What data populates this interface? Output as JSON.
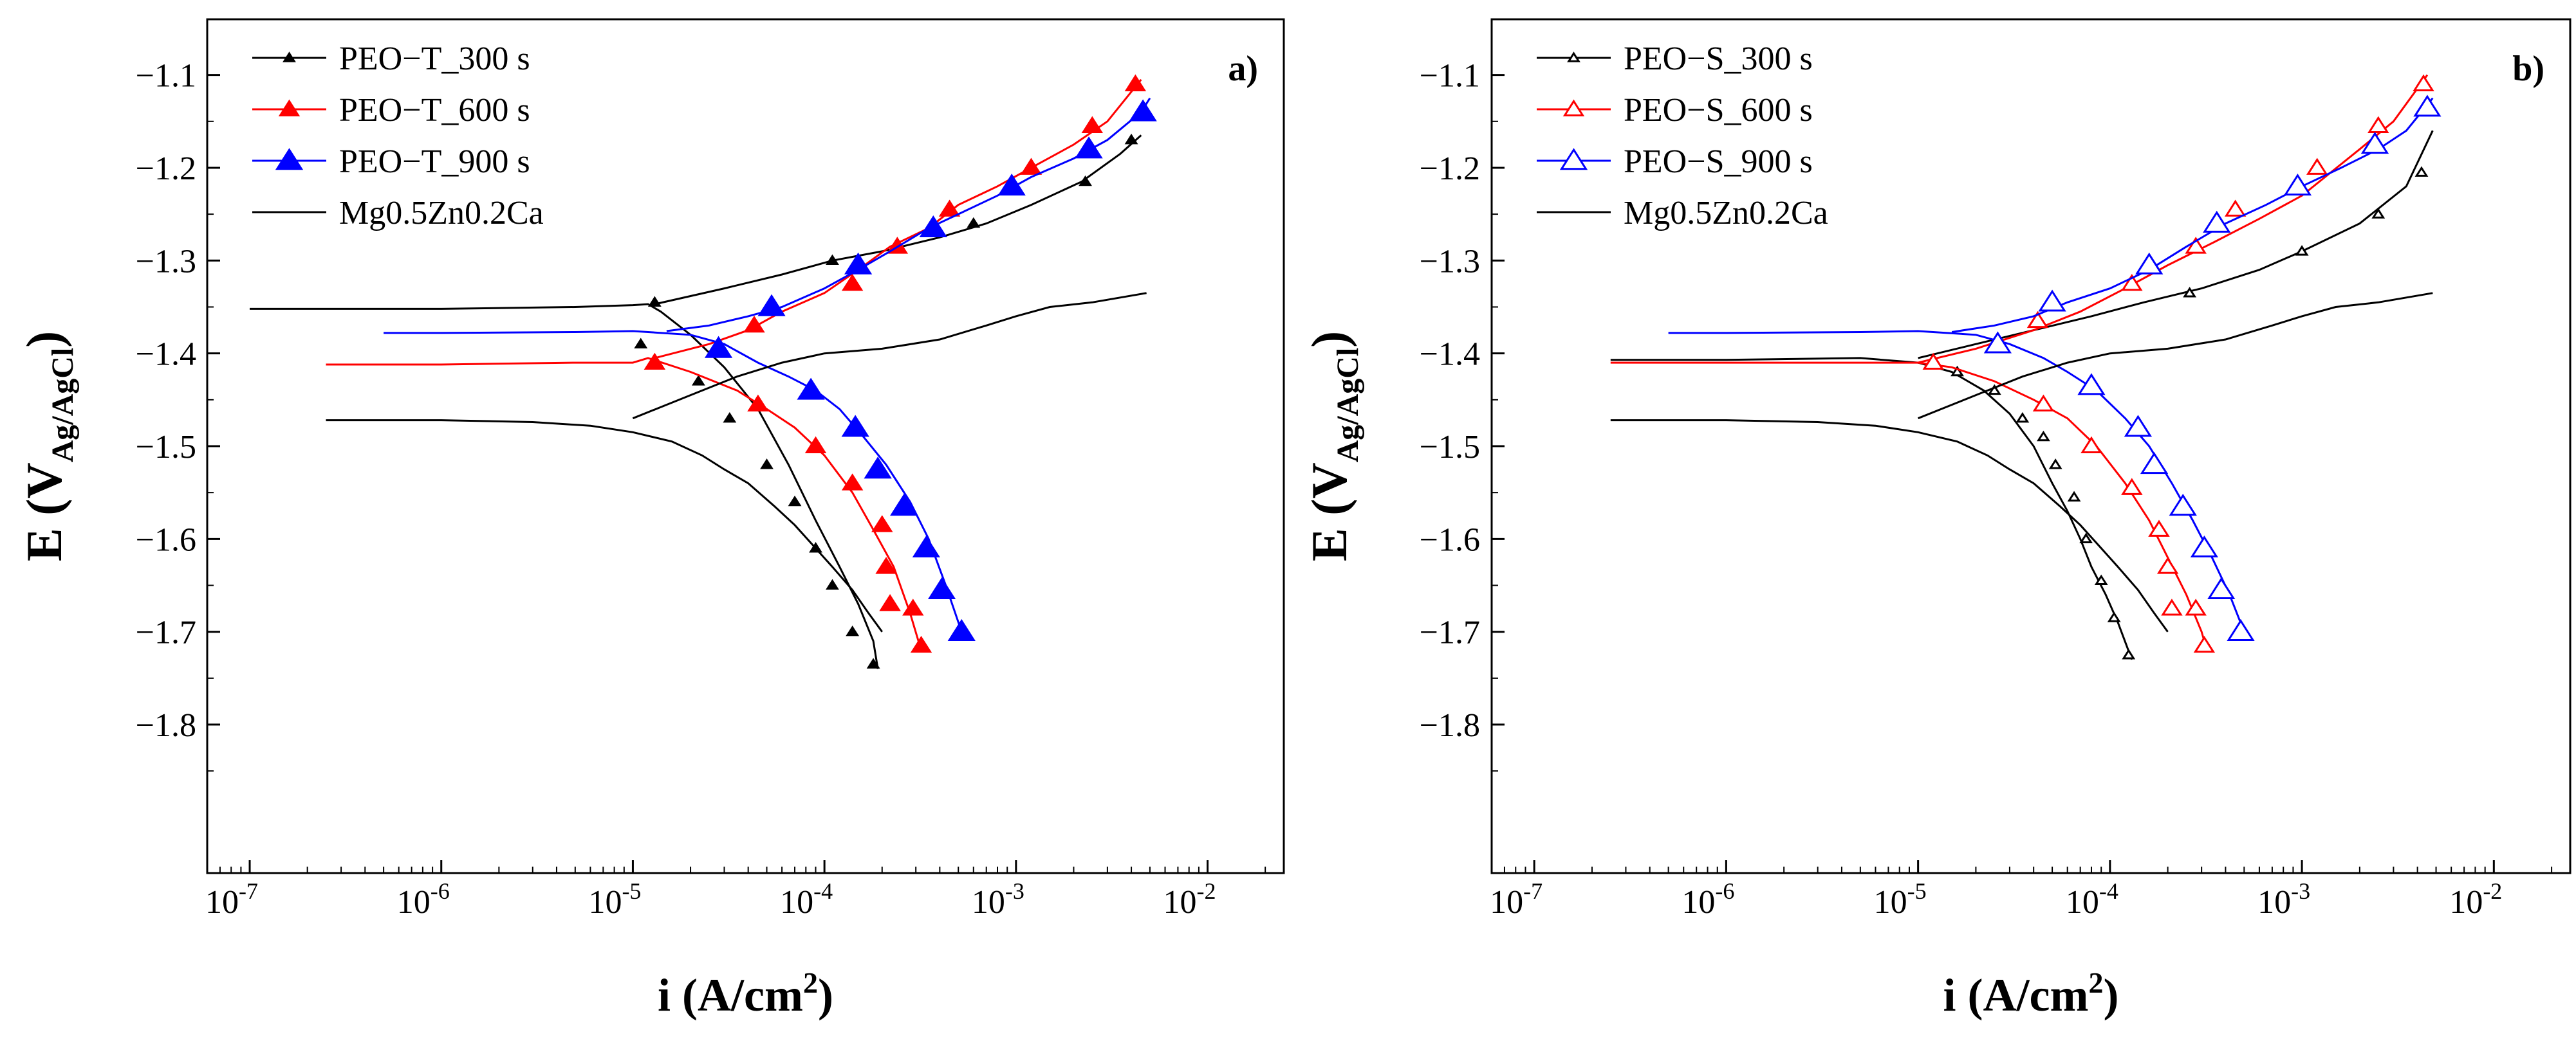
{
  "figure": {
    "description_labels": [
      "a)",
      "b)"
    ]
  },
  "chart_data": [
    {
      "type": "line",
      "panel_label": "a)",
      "xlabel": "i (A/cm²)",
      "xlabel_base": "i (A/cm",
      "xlabel_sup": "2",
      "xlabel_tail": ")",
      "ylabel": "E (V Ag/AgCl)",
      "ylabel_main": "E (V",
      "ylabel_sub": "Ag/AgCl",
      "ylabel_tail": ")",
      "xscale": "log",
      "xlim": [
        6e-08,
        0.025
      ],
      "ylim": [
        -1.96,
        -1.04
      ],
      "x_ticks": [
        1e-07,
        1e-06,
        1e-05,
        0.0001,
        0.001,
        0.01
      ],
      "x_tick_labels": [
        {
          "base": "10",
          "exp": "-7"
        },
        {
          "base": "10",
          "exp": "-6"
        },
        {
          "base": "10",
          "exp": "-5"
        },
        {
          "base": "10",
          "exp": "-4"
        },
        {
          "base": "10",
          "exp": "-3"
        },
        {
          "base": "10",
          "exp": "-2"
        }
      ],
      "y_ticks": [
        -1.1,
        -1.2,
        -1.3,
        -1.4,
        -1.5,
        -1.6,
        -1.7,
        -1.8
      ],
      "y_tick_labels": [
        "−1.1",
        "−1.2",
        "−1.3",
        "−1.4",
        "−1.5",
        "−1.6",
        "−1.7",
        "−1.8"
      ],
      "legend": "top-left",
      "series": [
        {
          "name": "PEO−T_300 s",
          "color": "#000000",
          "marker": "triangle-filled",
          "marker_scale": 0.55,
          "x": [
            1e-07,
            1e-06,
            5e-06,
            1e-05,
            1.2e-05,
            1.4e-05,
            2e-05,
            3e-05,
            4.5e-05,
            6.5e-05,
            9e-05,
            0.00012,
            0.00015,
            0.00018,
            0.00019
          ],
          "y": [
            -1.352,
            -1.352,
            -1.35,
            -1.348,
            -1.347,
            -1.355,
            -1.38,
            -1.415,
            -1.46,
            -1.52,
            -1.58,
            -1.63,
            -1.67,
            -1.71,
            -1.74
          ],
          "markers_x": [
            1.3e-05,
            1.1e-05,
            2.2e-05,
            3.2e-05,
            5e-05,
            7e-05,
            9e-05,
            0.00011,
            0.00014,
            0.00018
          ],
          "markers_y": [
            -1.345,
            -1.39,
            -1.43,
            -1.47,
            -1.52,
            -1.56,
            -1.61,
            -1.65,
            -1.7,
            -1.735
          ],
          "anodic_x": [
            1.3e-05,
            3e-05,
            6e-05,
            0.00011,
            0.0002,
            0.0004,
            0.0007,
            0.0012,
            0.0022,
            0.0035,
            0.0045
          ],
          "anodic_y": [
            -1.347,
            -1.33,
            -1.315,
            -1.3,
            -1.29,
            -1.275,
            -1.26,
            -1.24,
            -1.215,
            -1.185,
            -1.165
          ],
          "anodic_markers_x": [
            0.00011,
            0.0006,
            0.0023,
            0.004
          ],
          "anodic_markers_y": [
            -1.3,
            -1.26,
            -1.215,
            -1.17
          ]
        },
        {
          "name": "PEO−T_600 s",
          "color": "#ff0000",
          "marker": "triangle-filled",
          "marker_scale": 1.0,
          "x": [
            2.5e-07,
            1e-06,
            5e-06,
            1e-05,
            1.2e-05,
            2e-05,
            3.5e-05,
            5e-05,
            7e-05,
            0.0001,
            0.00014,
            0.00018,
            0.00023,
            0.00028,
            0.00032
          ],
          "y": [
            -1.412,
            -1.412,
            -1.41,
            -1.41,
            -1.405,
            -1.42,
            -1.44,
            -1.46,
            -1.48,
            -1.51,
            -1.55,
            -1.59,
            -1.63,
            -1.68,
            -1.72
          ],
          "markers_x": [
            1.3e-05,
            4.5e-05,
            9e-05,
            0.00014,
            0.0002,
            0.00021,
            0.00022,
            0.00029,
            0.00032
          ],
          "markers_y": [
            -1.41,
            -1.455,
            -1.5,
            -1.54,
            -1.585,
            -1.63,
            -1.67,
            -1.675,
            -1.715
          ],
          "anodic_x": [
            1.3e-05,
            2.5e-05,
            4e-05,
            6e-05,
            0.0001,
            0.00015,
            0.00022,
            0.00035,
            0.0005,
            0.0008,
            0.0012,
            0.002,
            0.003,
            0.0045
          ],
          "anodic_y": [
            -1.405,
            -1.39,
            -1.375,
            -1.355,
            -1.335,
            -1.31,
            -1.285,
            -1.265,
            -1.24,
            -1.22,
            -1.2,
            -1.175,
            -1.15,
            -1.105
          ],
          "anodic_markers_x": [
            4.3e-05,
            0.00014,
            0.00024,
            0.00045,
            0.0012,
            0.0025,
            0.0042
          ],
          "anodic_markers_y": [
            -1.37,
            -1.325,
            -1.285,
            -1.245,
            -1.2,
            -1.155,
            -1.11
          ]
        },
        {
          "name": "PEO−T_900 s",
          "color": "#0000ff",
          "marker": "triangle-filled",
          "marker_scale": 1.35,
          "x": [
            5e-07,
            1e-06,
            5e-06,
            1e-05,
            2e-05,
            3e-05,
            4.5e-05,
            6.5e-05,
            9e-05,
            0.00012,
            0.00016,
            0.00021,
            0.00028,
            0.00035,
            0.00043,
            0.00052
          ],
          "y": [
            -1.378,
            -1.378,
            -1.377,
            -1.376,
            -1.38,
            -1.39,
            -1.41,
            -1.425,
            -1.44,
            -1.46,
            -1.49,
            -1.52,
            -1.56,
            -1.6,
            -1.65,
            -1.7
          ],
          "markers_x": [
            2.8e-05,
            8.5e-05,
            0.000145,
            0.00019,
            0.00026,
            0.00034,
            0.00041,
            0.00052
          ],
          "markers_y": [
            -1.395,
            -1.44,
            -1.48,
            -1.525,
            -1.565,
            -1.61,
            -1.655,
            -1.7
          ],
          "anodic_x": [
            1.5e-05,
            2.5e-05,
            4e-05,
            6e-05,
            0.0001,
            0.00015,
            0.00022,
            0.00035,
            0.0005,
            0.0008,
            0.0012,
            0.002,
            0.003,
            0.0045,
            0.005
          ],
          "anodic_y": [
            -1.376,
            -1.37,
            -1.36,
            -1.35,
            -1.33,
            -1.31,
            -1.29,
            -1.265,
            -1.25,
            -1.23,
            -1.21,
            -1.19,
            -1.17,
            -1.14,
            -1.125
          ],
          "anodic_markers_x": [
            5.3e-05,
            0.00015,
            0.00037,
            0.00095,
            0.0024,
            0.0046
          ],
          "anodic_markers_y": [
            -1.35,
            -1.305,
            -1.265,
            -1.22,
            -1.18,
            -1.14
          ]
        },
        {
          "name": "Mg0.5Zn0.2Ca",
          "color": "#000000",
          "marker": "none",
          "x": [
            2.5e-07,
            1e-06,
            3e-06,
            6e-06,
            1e-05,
            1.6e-05,
            2.3e-05,
            3e-05,
            4e-05,
            5.5e-05,
            7e-05,
            9e-05,
            0.00011,
            0.00014,
            0.00017,
            0.0002
          ],
          "y": [
            -1.472,
            -1.472,
            -1.474,
            -1.478,
            -1.485,
            -1.495,
            -1.51,
            -1.525,
            -1.54,
            -1.565,
            -1.585,
            -1.61,
            -1.63,
            -1.655,
            -1.68,
            -1.7
          ],
          "anodic_x": [
            1e-05,
            2e-05,
            3.5e-05,
            6e-05,
            0.0001,
            0.0002,
            0.0004,
            0.0007,
            0.001,
            0.0015,
            0.0025,
            0.0048
          ],
          "anodic_y": [
            -1.47,
            -1.445,
            -1.425,
            -1.41,
            -1.4,
            -1.395,
            -1.385,
            -1.37,
            -1.36,
            -1.35,
            -1.345,
            -1.335
          ]
        }
      ]
    },
    {
      "type": "line",
      "panel_label": "b)",
      "xlabel": "i (A/cm²)",
      "xlabel_base": "i (A/cm",
      "xlabel_sup": "2",
      "xlabel_tail": ")",
      "ylabel": "E (V Ag/AgCl)",
      "ylabel_main": "E (V",
      "ylabel_sub": "Ag/AgCl",
      "ylabel_tail": ")",
      "xscale": "log",
      "xlim": [
        6e-08,
        0.025
      ],
      "ylim": [
        -1.96,
        -1.04
      ],
      "x_ticks": [
        1e-07,
        1e-06,
        1e-05,
        0.0001,
        0.001,
        0.01
      ],
      "x_tick_labels": [
        {
          "base": "10",
          "exp": "-7"
        },
        {
          "base": "10",
          "exp": "-6"
        },
        {
          "base": "10",
          "exp": "-5"
        },
        {
          "base": "10",
          "exp": "-4"
        },
        {
          "base": "10",
          "exp": "-3"
        },
        {
          "base": "10",
          "exp": "-2"
        }
      ],
      "y_ticks": [
        -1.1,
        -1.2,
        -1.3,
        -1.4,
        -1.5,
        -1.6,
        -1.7,
        -1.8
      ],
      "y_tick_labels": [
        "−1.1",
        "−1.2",
        "−1.3",
        "−1.4",
        "−1.5",
        "−1.6",
        "−1.7",
        "−1.8"
      ],
      "legend": "top-left",
      "series": [
        {
          "name": "PEO−S_300 s",
          "color": "#000000",
          "marker": "triangle-open",
          "marker_scale": 0.55,
          "x": [
            2.5e-07,
            1e-06,
            5e-06,
            1e-05,
            1.5e-05,
            2.2e-05,
            3e-05,
            4e-05,
            5e-05,
            6e-05,
            7e-05,
            8e-05,
            9.5e-05,
            0.00011,
            0.00013
          ],
          "y": [
            -1.407,
            -1.407,
            -1.405,
            -1.41,
            -1.42,
            -1.44,
            -1.465,
            -1.5,
            -1.54,
            -1.57,
            -1.6,
            -1.63,
            -1.66,
            -1.69,
            -1.73
          ],
          "markers_x": [
            1.6e-05,
            2.5e-05,
            3.5e-05,
            4.5e-05,
            5.2e-05,
            6.5e-05,
            7.5e-05,
            9e-05,
            0.000105,
            0.000125
          ],
          "markers_y": [
            -1.42,
            -1.44,
            -1.47,
            -1.49,
            -1.52,
            -1.555,
            -1.6,
            -1.645,
            -1.685,
            -1.725
          ],
          "anodic_x": [
            1e-05,
            2e-05,
            4e-05,
            8e-05,
            0.00015,
            0.0003,
            0.0006,
            0.001,
            0.002,
            0.0035,
            0.0048
          ],
          "anodic_y": [
            -1.405,
            -1.39,
            -1.375,
            -1.36,
            -1.345,
            -1.33,
            -1.31,
            -1.29,
            -1.26,
            -1.22,
            -1.16
          ],
          "anodic_markers_x": [
            0.00026,
            0.001,
            0.0025,
            0.0042
          ],
          "anodic_markers_y": [
            -1.335,
            -1.29,
            -1.25,
            -1.205
          ]
        },
        {
          "name": "PEO−S_600 s",
          "color": "#ff0000",
          "marker": "triangle-open",
          "marker_scale": 1.0,
          "x": [
            2.5e-07,
            1e-06,
            5e-06,
            1e-05,
            1.5e-05,
            2.5e-05,
            4e-05,
            6e-05,
            8.5e-05,
            0.00012,
            0.00016,
            0.0002,
            0.00025,
            0.0003,
            0.00032
          ],
          "y": [
            -1.41,
            -1.41,
            -1.41,
            -1.41,
            -1.415,
            -1.43,
            -1.45,
            -1.47,
            -1.5,
            -1.54,
            -1.58,
            -1.62,
            -1.66,
            -1.7,
            -1.72
          ],
          "markers_x": [
            1.2e-05,
            4.5e-05,
            8e-05,
            0.00013,
            0.00018,
            0.0002,
            0.00021,
            0.00028,
            0.00031
          ],
          "markers_y": [
            -1.41,
            -1.455,
            -1.5,
            -1.545,
            -1.59,
            -1.63,
            -1.675,
            -1.675,
            -1.715
          ],
          "anodic_x": [
            1e-05,
            2e-05,
            4e-05,
            7e-05,
            0.00012,
            0.0002,
            0.00035,
            0.0006,
            0.001,
            0.002,
            0.003,
            0.0045
          ],
          "anodic_y": [
            -1.41,
            -1.395,
            -1.375,
            -1.355,
            -1.33,
            -1.305,
            -1.28,
            -1.255,
            -1.23,
            -1.18,
            -1.15,
            -1.1
          ],
          "anodic_markers_x": [
            4.2e-05,
            0.00013,
            0.00028,
            0.00045,
            0.0012,
            0.0025,
            0.0043
          ],
          "anodic_markers_y": [
            -1.365,
            -1.325,
            -1.285,
            -1.245,
            -1.2,
            -1.155,
            -1.11
          ]
        },
        {
          "name": "PEO−S_900 s",
          "color": "#0000ff",
          "marker": "triangle-open",
          "marker_scale": 1.35,
          "x": [
            5e-07,
            1e-06,
            5e-06,
            1e-05,
            2e-05,
            3e-05,
            4.5e-05,
            6e-05,
            8.5e-05,
            0.00012,
            0.00016,
            0.00021,
            0.00027,
            0.00034,
            0.00042,
            0.0005
          ],
          "y": [
            -1.378,
            -1.378,
            -1.377,
            -1.376,
            -1.38,
            -1.39,
            -1.405,
            -1.42,
            -1.44,
            -1.47,
            -1.5,
            -1.54,
            -1.58,
            -1.62,
            -1.66,
            -1.7
          ],
          "markers_x": [
            2.6e-05,
            8e-05,
            0.00014,
            0.00017,
            0.00024,
            0.00031,
            0.00038,
            0.00048
          ],
          "markers_y": [
            -1.39,
            -1.435,
            -1.48,
            -1.52,
            -1.565,
            -1.61,
            -1.655,
            -1.7
          ],
          "anodic_x": [
            1.5e-05,
            2.5e-05,
            4e-05,
            6e-05,
            0.0001,
            0.00016,
            0.00025,
            0.0004,
            0.00065,
            0.001,
            0.0016,
            0.0025,
            0.0035,
            0.0048
          ],
          "anodic_y": [
            -1.377,
            -1.37,
            -1.36,
            -1.345,
            -1.33,
            -1.31,
            -1.285,
            -1.26,
            -1.24,
            -1.22,
            -1.2,
            -1.18,
            -1.16,
            -1.125
          ],
          "anodic_markers_x": [
            5e-05,
            0.00016,
            0.00036,
            0.00095,
            0.0024,
            0.0045
          ],
          "anodic_markers_y": [
            -1.345,
            -1.305,
            -1.26,
            -1.22,
            -1.175,
            -1.135
          ]
        },
        {
          "name": "Mg0.5Zn0.2Ca",
          "color": "#000000",
          "marker": "none",
          "x": [
            2.5e-07,
            1e-06,
            3e-06,
            6e-06,
            1e-05,
            1.6e-05,
            2.3e-05,
            3e-05,
            4e-05,
            5.5e-05,
            7e-05,
            9e-05,
            0.00011,
            0.00014,
            0.00017,
            0.0002
          ],
          "y": [
            -1.472,
            -1.472,
            -1.474,
            -1.478,
            -1.485,
            -1.495,
            -1.51,
            -1.525,
            -1.54,
            -1.565,
            -1.585,
            -1.61,
            -1.63,
            -1.655,
            -1.68,
            -1.7
          ],
          "anodic_x": [
            1e-05,
            2e-05,
            3.5e-05,
            6e-05,
            0.0001,
            0.0002,
            0.0004,
            0.0007,
            0.001,
            0.0015,
            0.0025,
            0.0048
          ],
          "anodic_y": [
            -1.47,
            -1.445,
            -1.425,
            -1.41,
            -1.4,
            -1.395,
            -1.385,
            -1.37,
            -1.36,
            -1.35,
            -1.345,
            -1.335
          ]
        }
      ]
    }
  ]
}
